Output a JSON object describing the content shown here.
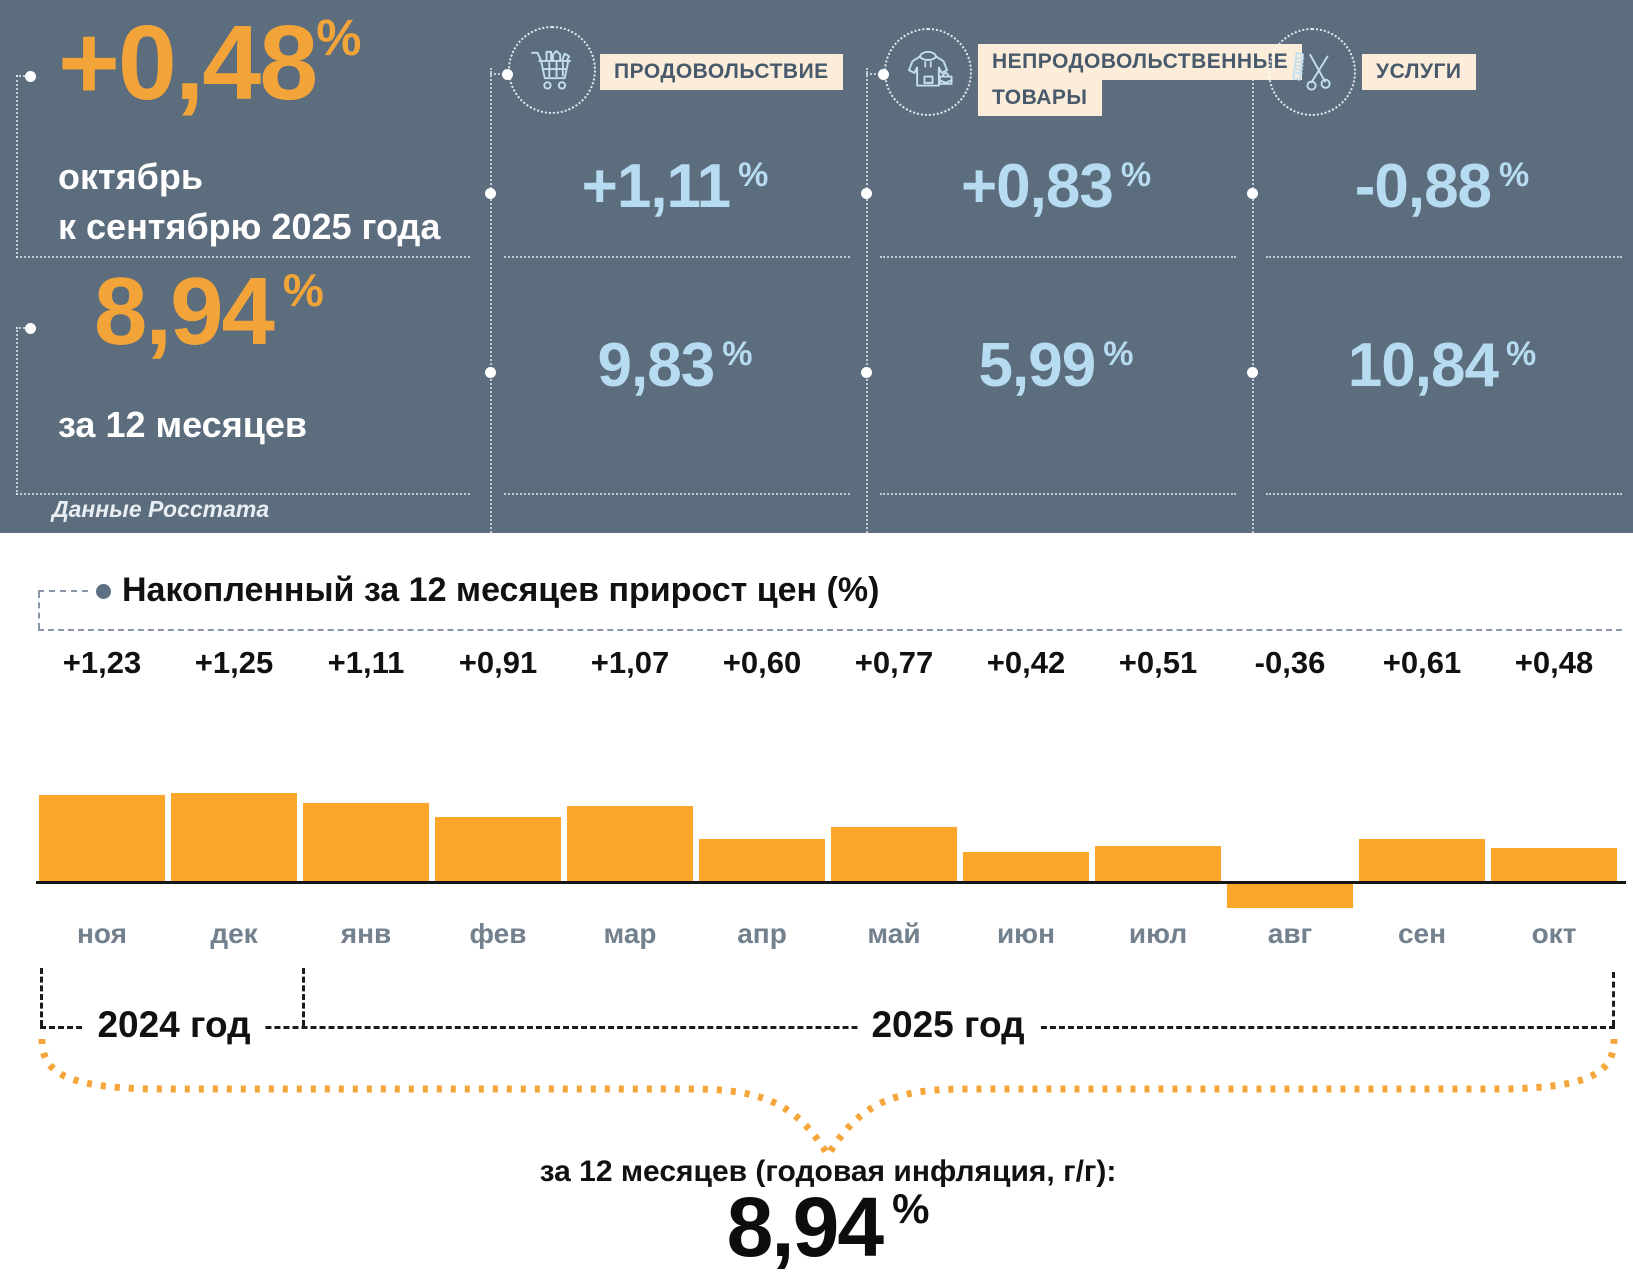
{
  "percent_sign": "%",
  "colors": {
    "header_bg": "#5C6D7E",
    "accent_orange": "#F3A439",
    "value_blue": "#B7DCF1",
    "label_bg": "#FBEDDA",
    "label_text": "#47596B",
    "bar_color": "#FAA62B",
    "month_label": "#73808D",
    "bullet": "#5D7184"
  },
  "header": {
    "monthly": {
      "value": "+0,48",
      "caption_line1": "октябрь",
      "caption_line2": "к сентябрю 2025 года"
    },
    "annual": {
      "value": "8,94",
      "caption": "за 12 месяцев"
    },
    "source": "Данные Росстата",
    "categories": [
      {
        "id": "food",
        "icon": "shopping-cart",
        "label_lines": [
          "ПРОДОВОЛЬСТВИЕ",
          ""
        ],
        "monthly": "+1,11",
        "annual": "9,83"
      },
      {
        "id": "nonfood",
        "icon": "clothes-and-bag",
        "label_lines": [
          "НЕПРОДОВОЛЬСТВЕННЫЕ",
          "ТОВАРЫ"
        ],
        "monthly": "+0,83",
        "annual": "5,99"
      },
      {
        "id": "services",
        "icon": "comb-and-scissors",
        "label_lines": [
          "УСЛУГИ",
          ""
        ],
        "monthly": "-0,88",
        "annual": "10,84"
      }
    ]
  },
  "chart": {
    "title": "Накопленный за 12 месяцев прирост цен (%)",
    "year_labels": [
      "2024 год",
      "2025 год"
    ]
  },
  "chart_data": {
    "type": "bar",
    "title": "Накопленный за 12 месяцев прирост цен (%)",
    "categories": [
      "ноя",
      "дек",
      "янв",
      "фев",
      "мар",
      "апр",
      "май",
      "июн",
      "июл",
      "авг",
      "сен",
      "окт"
    ],
    "values": [
      1.23,
      1.25,
      1.11,
      0.91,
      1.07,
      0.6,
      0.77,
      0.42,
      0.51,
      -0.36,
      0.61,
      0.48
    ],
    "value_labels": [
      "+1,23",
      "+1,25",
      "+1,11",
      "+0,91",
      "+1,07",
      "+0,60",
      "+0,77",
      "+0,42",
      "+0,51",
      "-0,36",
      "+0,61",
      "+0,48"
    ],
    "year_groups": [
      {
        "label": "2024 год",
        "months": [
          "ноя",
          "дек"
        ]
      },
      {
        "label": "2025 год",
        "months": [
          "янв",
          "фев",
          "мар",
          "апр",
          "май",
          "июн",
          "июл",
          "авг",
          "сен",
          "окт"
        ]
      }
    ],
    "bar_color": "#FAA62B",
    "xlabel": "",
    "ylabel": "",
    "ylim": [
      -0.5,
      1.4
    ],
    "grid": false,
    "legend": false
  },
  "footer": {
    "caption": "за 12 месяцев (годовая инфляция, г/г):",
    "value": "8,94"
  }
}
